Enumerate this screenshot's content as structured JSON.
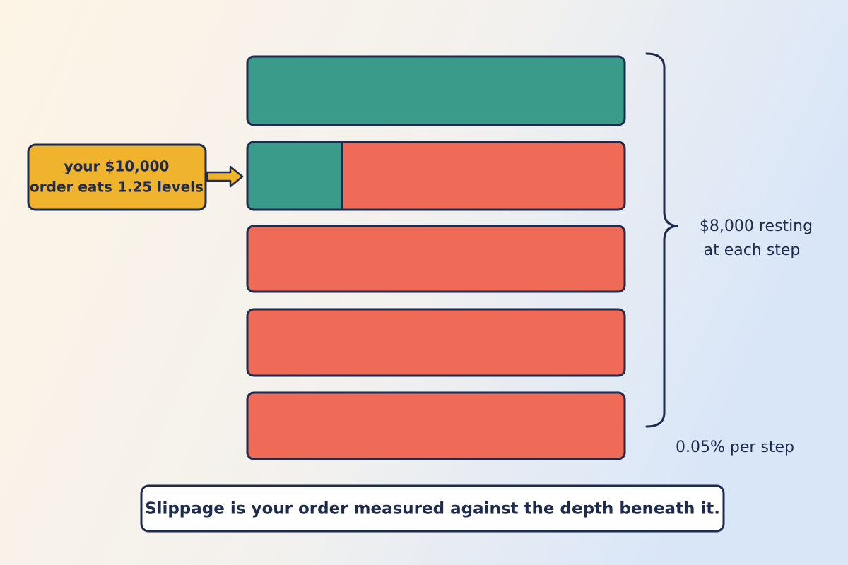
{
  "callout": {
    "lines": [
      "your $10,000",
      "order eats 1.25 levels"
    ]
  },
  "bracket": {
    "lines": [
      "$8,000 resting",
      "at each step"
    ]
  },
  "step_note": "0.05% per step",
  "caption": "Slippage is your order measured against the depth beneath it."
}
